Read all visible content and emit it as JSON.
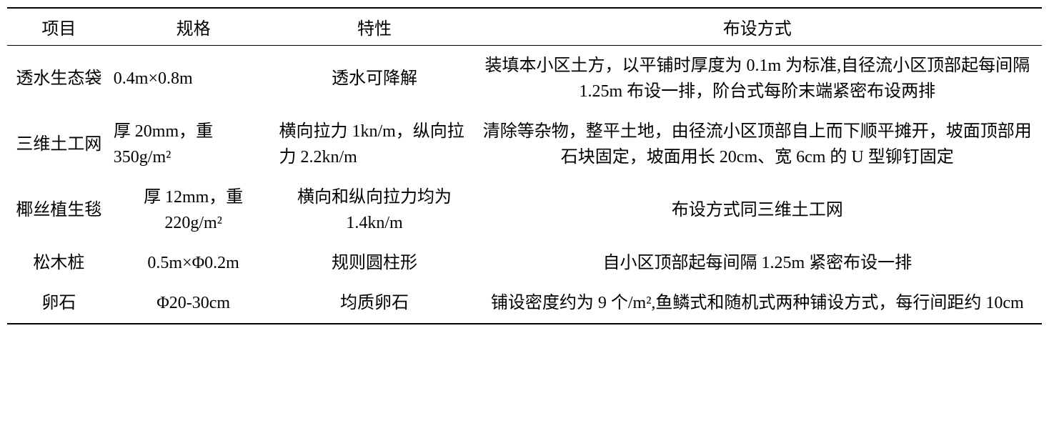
{
  "table": {
    "columns": [
      {
        "key": "item",
        "label": "项目",
        "width": "10%",
        "align": "center"
      },
      {
        "key": "spec",
        "label": "规格",
        "width": "16%",
        "align": "center"
      },
      {
        "key": "char",
        "label": "特性",
        "width": "19%",
        "align": "center"
      },
      {
        "key": "layout",
        "label": "布设方式",
        "width": "55%",
        "align": "center"
      }
    ],
    "rows": [
      {
        "item": "透水生态袋",
        "spec": "0.4m×0.8m",
        "char": "透水可降解",
        "layout": "装填本小区土方，以平铺时厚度为 0.1m 为标准,自径流小区顶部起每间隔 1.25m 布设一排，阶台式每阶末端紧密布设两排"
      },
      {
        "item": "三维土工网",
        "spec": "厚 20mm，重350g/m²",
        "char": "横向拉力 1kn/m，纵向拉力 2.2kn/m",
        "layout": "清除等杂物，整平土地，由径流小区顶部自上而下顺平摊开，坡面顶部用石块固定，坡面用长 20cm、宽 6cm 的 U 型铆钉固定"
      },
      {
        "item": "椰丝植生毯",
        "spec": "厚 12mm，重220g/m²",
        "char": "横向和纵向拉力均为 1.4kn/m",
        "layout": "布设方式同三维土工网"
      },
      {
        "item": "松木桩",
        "spec": "0.5m×Φ0.2m",
        "char": "规则圆柱形",
        "layout": "自小区顶部起每间隔 1.25m 紧密布设一排"
      },
      {
        "item": "卵石",
        "spec": "Φ20-30cm",
        "char": "均质卵石",
        "layout": "铺设密度约为 9 个/m²,鱼鳞式和随机式两种铺设方式，每行间距约 10cm"
      }
    ],
    "border_color": "#000000",
    "background_color": "#ffffff",
    "font_size": 24,
    "font_family": "SimSun",
    "border_top_width": 2,
    "border_header_width": 1.5,
    "border_bottom_width": 2,
    "line_height": 1.5
  }
}
